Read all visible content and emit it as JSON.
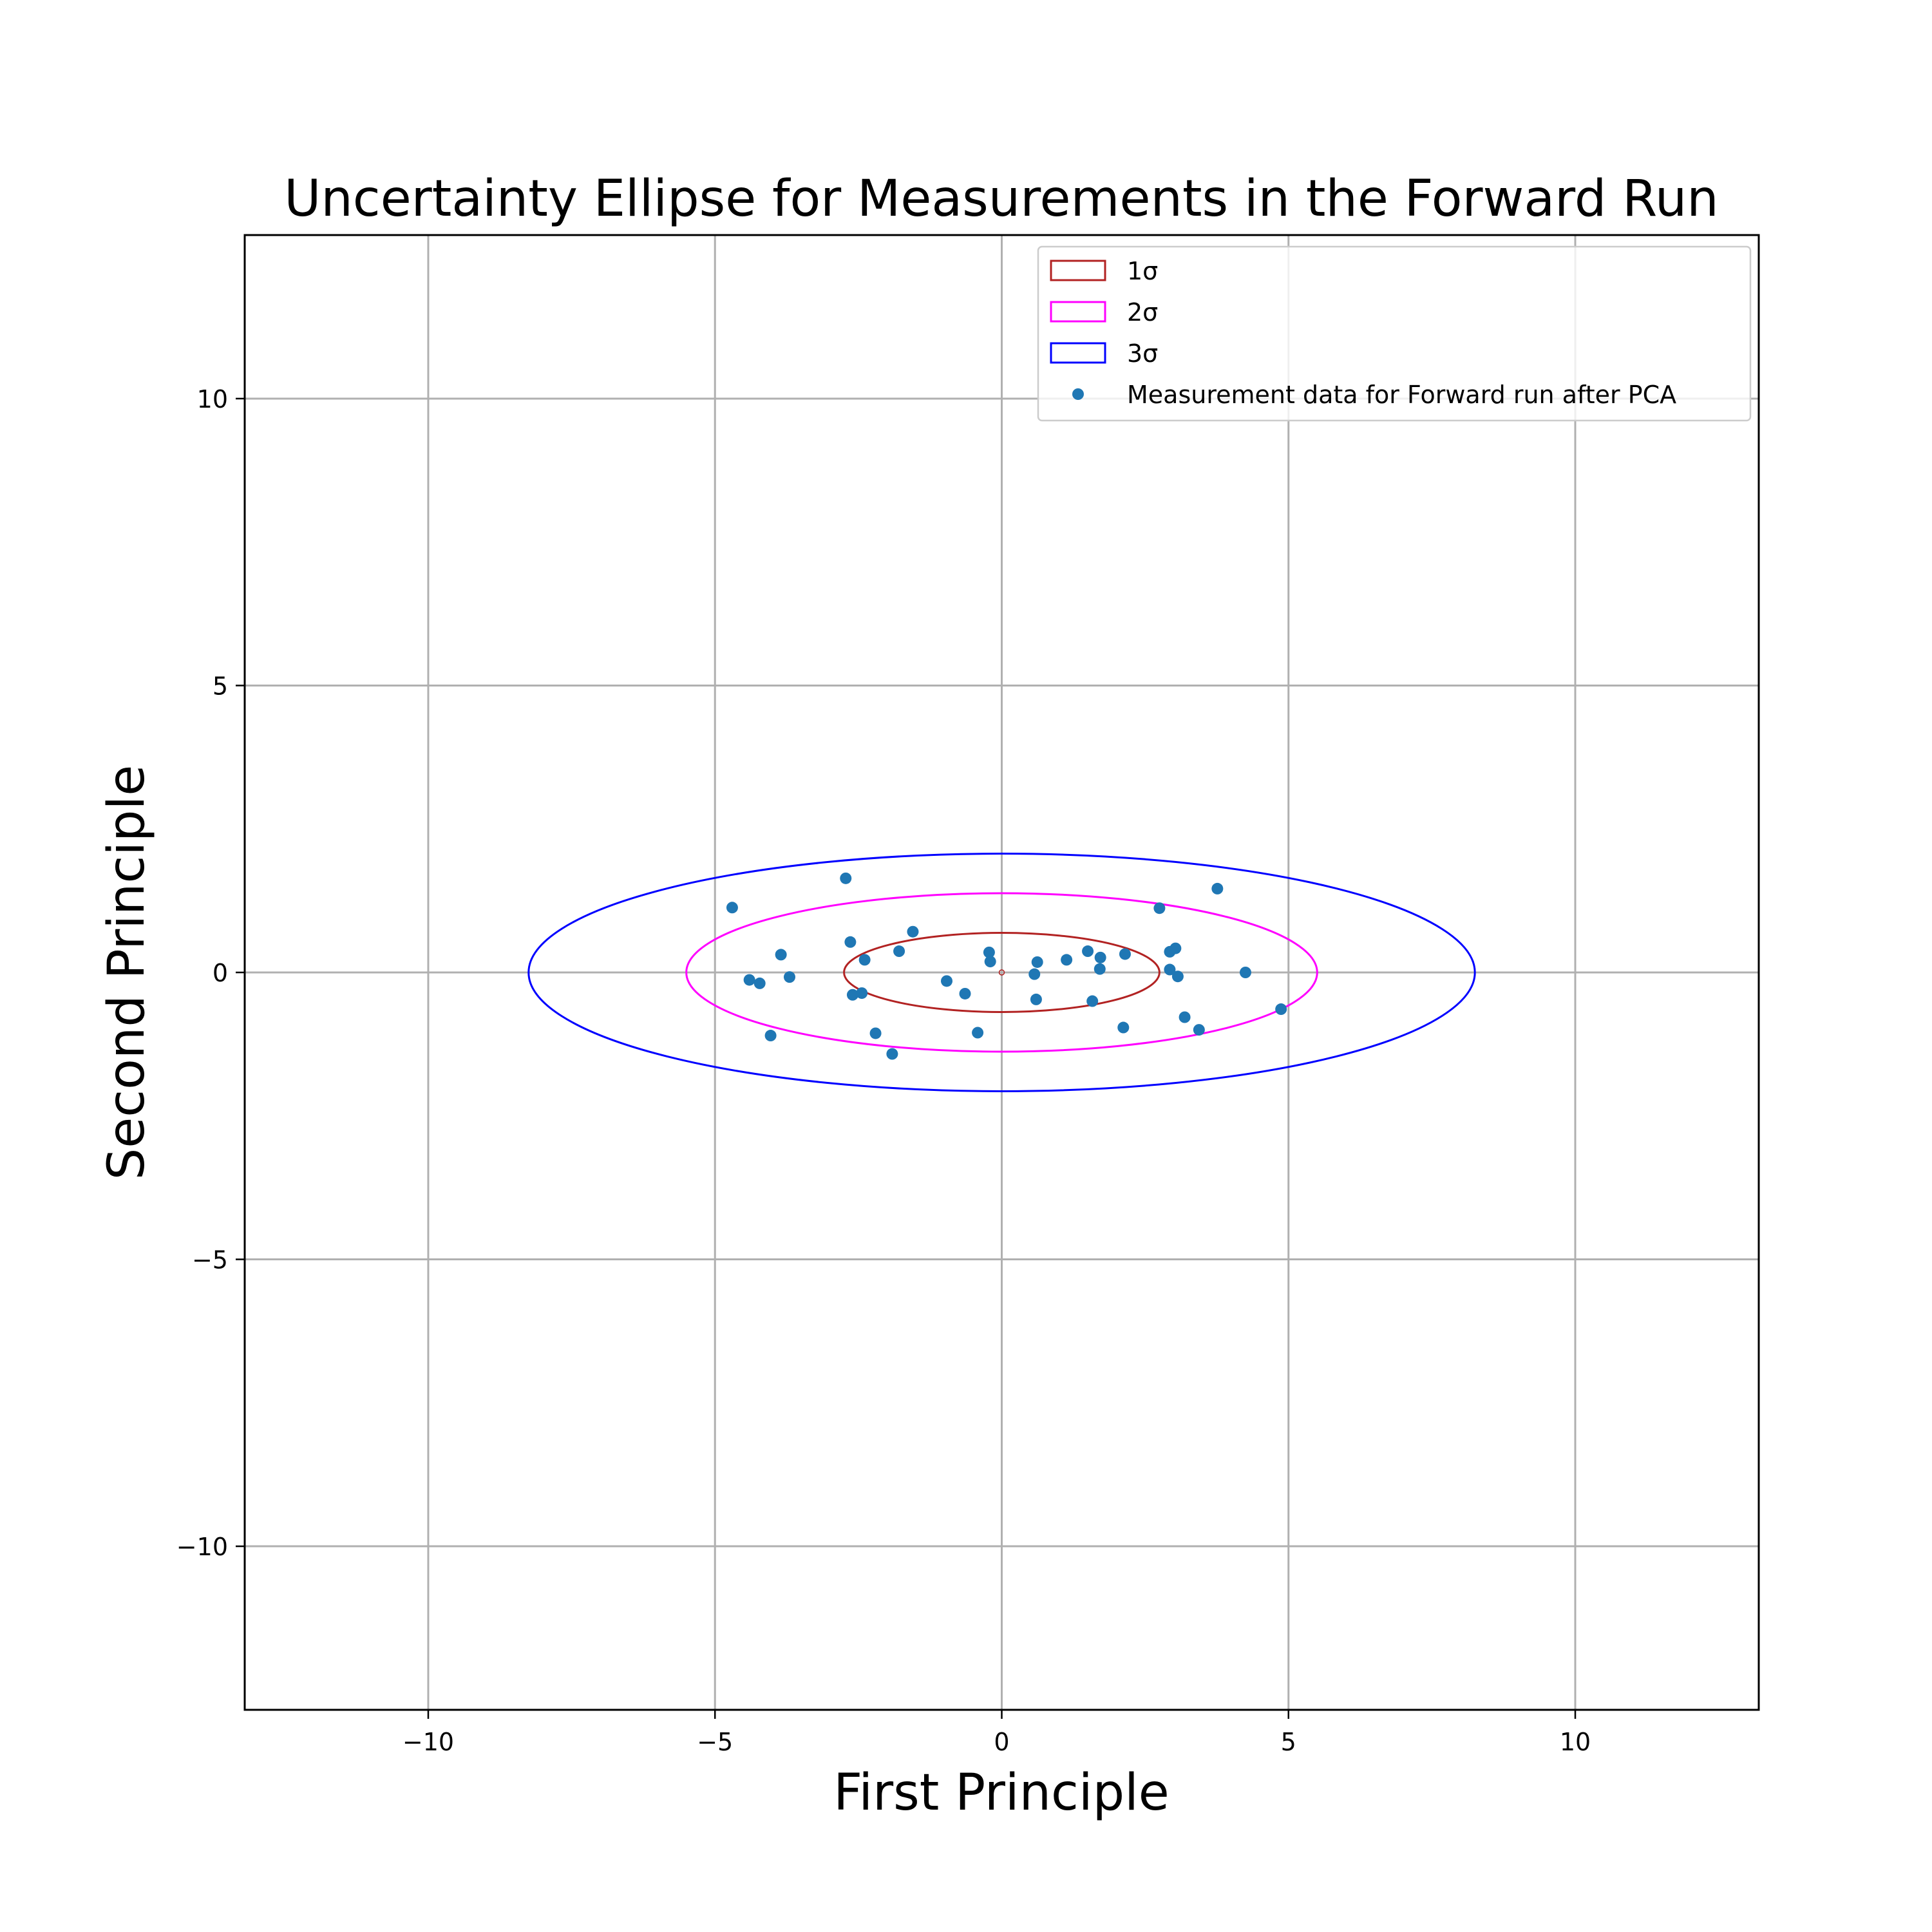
{
  "chart_data": {
    "type": "scatter",
    "title": "Uncertainty Ellipse for Measurements in the Forward Run",
    "xlabel": "First Principle",
    "ylabel": "Second Principle",
    "xlim": [
      -13.2,
      13.2
    ],
    "ylim": [
      -12.85,
      12.85
    ],
    "grid": true,
    "xticks": [
      {
        "value": -10,
        "label": "−10"
      },
      {
        "value": -5,
        "label": "−5"
      },
      {
        "value": 0,
        "label": "0"
      },
      {
        "value": 5,
        "label": "5"
      },
      {
        "value": 10,
        "label": "10"
      }
    ],
    "yticks": [
      {
        "value": -10,
        "label": "−10"
      },
      {
        "value": -5,
        "label": "−5"
      },
      {
        "value": 0,
        "label": "0"
      },
      {
        "value": 5,
        "label": "5"
      },
      {
        "value": 10,
        "label": "10"
      }
    ],
    "legend": {
      "position": "top-right",
      "entries": [
        {
          "label": "1σ",
          "kind": "ellipse",
          "color": "#b22222"
        },
        {
          "label": "2σ",
          "kind": "ellipse",
          "color": "#ff00ff"
        },
        {
          "label": "3σ",
          "kind": "ellipse",
          "color": "#0000ff"
        },
        {
          "label": "Measurement data for Forward run after PCA",
          "kind": "marker",
          "color": "#1f77b4"
        }
      ]
    },
    "ellipses": [
      {
        "name": "1σ",
        "center": [
          0,
          0
        ],
        "semi_x": 2.75,
        "semi_y": 0.69,
        "color": "#b22222"
      },
      {
        "name": "2σ",
        "center": [
          0,
          0
        ],
        "semi_x": 5.5,
        "semi_y": 1.38,
        "color": "#ff00ff"
      },
      {
        "name": "3σ",
        "center": [
          0,
          0
        ],
        "semi_x": 8.25,
        "semi_y": 2.07,
        "color": "#0000ff"
      }
    ],
    "series": [
      {
        "name": "Measurement data for Forward run after PCA",
        "color": "#1f77b4",
        "points": [
          [
            -4.7,
            1.13
          ],
          [
            -2.72,
            1.64
          ],
          [
            3.76,
            1.46
          ],
          [
            2.75,
            1.12
          ],
          [
            -1.55,
            0.71
          ],
          [
            -2.64,
            0.53
          ],
          [
            -1.79,
            0.37
          ],
          [
            -2.39,
            0.22
          ],
          [
            -3.85,
            0.31
          ],
          [
            -0.22,
            0.35
          ],
          [
            -0.2,
            0.19
          ],
          [
            0.62,
            0.18
          ],
          [
            1.13,
            0.22
          ],
          [
            1.5,
            0.37
          ],
          [
            1.72,
            0.26
          ],
          [
            2.15,
            0.32
          ],
          [
            2.93,
            0.36
          ],
          [
            3.03,
            0.42
          ],
          [
            1.71,
            0.06
          ],
          [
            2.93,
            0.05
          ],
          [
            0.57,
            -0.03
          ],
          [
            3.07,
            -0.07
          ],
          [
            4.25,
            0.0
          ],
          [
            -3.7,
            -0.08
          ],
          [
            -4.4,
            -0.13
          ],
          [
            -4.22,
            -0.19
          ],
          [
            -0.96,
            -0.15
          ],
          [
            -0.64,
            -0.37
          ],
          [
            -2.6,
            -0.39
          ],
          [
            -2.44,
            -0.36
          ],
          [
            0.6,
            -0.47
          ],
          [
            1.58,
            -0.5
          ],
          [
            4.87,
            -0.64
          ],
          [
            3.19,
            -0.78
          ],
          [
            2.12,
            -0.96
          ],
          [
            3.44,
            -1.0
          ],
          [
            -0.42,
            -1.05
          ],
          [
            -2.2,
            -1.06
          ],
          [
            -4.03,
            -1.1
          ],
          [
            -1.91,
            -1.42
          ]
        ]
      }
    ]
  }
}
